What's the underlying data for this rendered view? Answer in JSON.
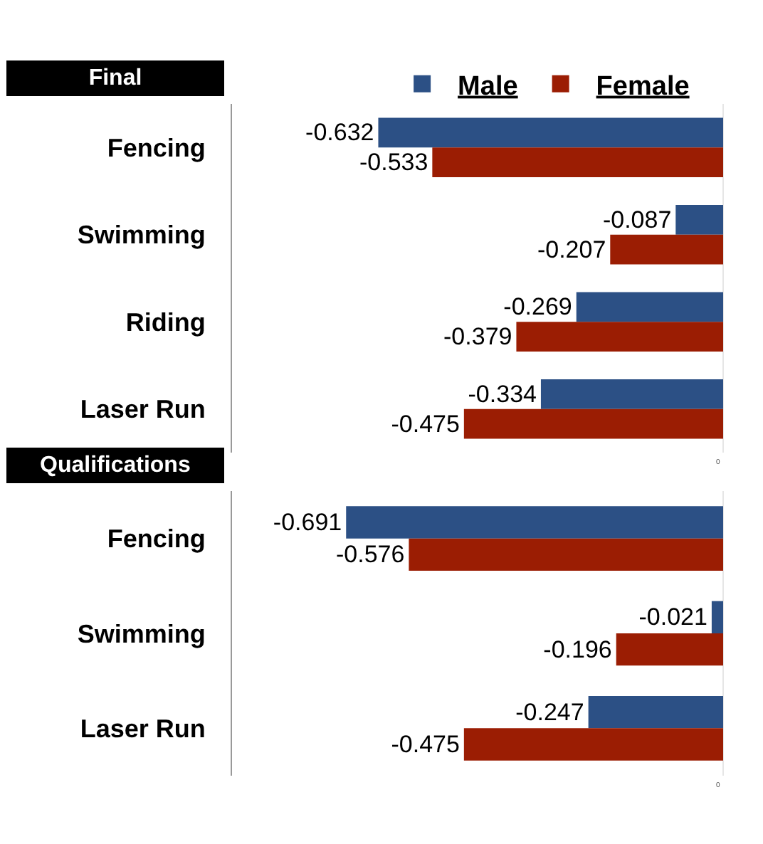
{
  "chart_data": [
    {
      "type": "bar",
      "title": "Final",
      "orientation": "horizontal",
      "categories": [
        "Fencing",
        "Swimming",
        "Riding",
        "Laser Run"
      ],
      "series": [
        {
          "name": "Male",
          "color": "#2c5085",
          "values": [
            -0.632,
            -0.087,
            -0.269,
            -0.334
          ]
        },
        {
          "name": "Female",
          "color": "#9b1d03",
          "values": [
            -0.533,
            -0.207,
            -0.379,
            -0.475
          ]
        }
      ],
      "xlim": [
        -0.9,
        0
      ],
      "annotations": [
        "0"
      ],
      "data_labels": true,
      "legend": "top"
    },
    {
      "type": "bar",
      "title": "Qualifications",
      "orientation": "horizontal",
      "categories": [
        "Fencing",
        "Swimming",
        "Laser Run"
      ],
      "series": [
        {
          "color": "#2c5085",
          "values": [
            -0.691,
            -0.021,
            -0.247
          ]
        },
        {
          "color": "#9b1d03",
          "values": [
            -0.576,
            -0.196,
            -0.475
          ]
        }
      ],
      "xlim": [
        -0.9,
        0
      ],
      "annotations": [
        "0"
      ],
      "data_labels": true
    }
  ]
}
